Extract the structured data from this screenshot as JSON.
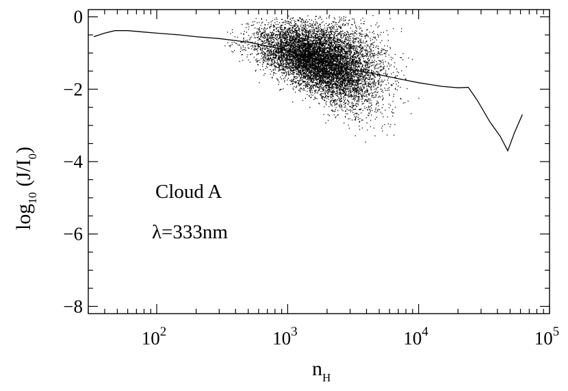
{
  "chart_data": {
    "type": "scatter",
    "title": "",
    "xlabel": {
      "base": "n",
      "subscript": "H"
    },
    "ylabel": {
      "prefix": "log",
      "prefix_subscript": "10",
      "expression": "(J/I",
      "expression_subscript": "0",
      "suffix": ")"
    },
    "xscale": "log",
    "xlim": [
      30,
      100000
    ],
    "ylim": [
      -8.2,
      0.2
    ],
    "yticks": [
      0,
      -2,
      -4,
      -6,
      -8
    ],
    "ytick_labels": [
      "0",
      "−2",
      "−4",
      "−6",
      "−8"
    ],
    "xticks": [
      100,
      1000,
      10000,
      100000
    ],
    "xtick_labels": [
      {
        "base": "10",
        "exp": "2"
      },
      {
        "base": "10",
        "exp": "3"
      },
      {
        "base": "10",
        "exp": "4"
      },
      {
        "base": "10",
        "exp": "5"
      }
    ],
    "annotations": [
      "Cloud A",
      "λ=333nm"
    ],
    "grid": false,
    "legend": "none",
    "point_color": "#000000",
    "median_line": {
      "x": [
        33,
        40,
        48,
        60,
        80,
        100,
        150,
        200,
        300,
        500,
        800,
        1000,
        2000,
        3000,
        5000,
        8000,
        10000,
        15000,
        20000,
        24000,
        28000,
        35000,
        42000,
        48000,
        54000,
        62000
      ],
      "y": [
        -0.55,
        -0.45,
        -0.38,
        -0.38,
        -0.42,
        -0.45,
        -0.5,
        -0.55,
        -0.6,
        -0.7,
        -0.85,
        -0.95,
        -1.25,
        -1.45,
        -1.6,
        -1.75,
        -1.82,
        -1.92,
        -1.96,
        -1.95,
        -2.3,
        -2.9,
        -3.3,
        -3.7,
        -3.2,
        -2.7
      ]
    }
  }
}
